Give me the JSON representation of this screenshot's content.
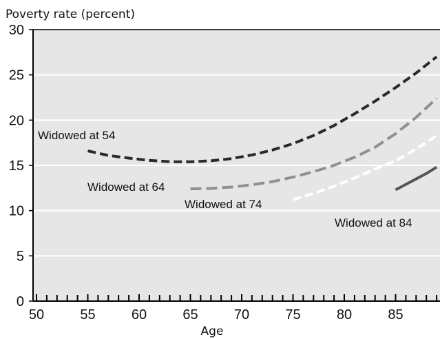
{
  "chart_data": {
    "type": "line",
    "ylabel": "Poverty rate (percent)",
    "xlabel": "Age",
    "xlim": [
      50,
      89
    ],
    "ylim": [
      0,
      30
    ],
    "xticks": [
      50,
      55,
      60,
      65,
      70,
      75,
      80,
      85
    ],
    "yticks": [
      0,
      5,
      10,
      15,
      20,
      25,
      30
    ],
    "grid": true,
    "legend": "inline labels",
    "colors": {
      "plot_bg": "#e6e6e6",
      "grid": "#ffffff",
      "axis": "#000000"
    },
    "series": [
      {
        "name": "Widowed at 54",
        "color": "#2a2a2a",
        "dash": "dashed",
        "x": [
          55,
          57,
          59,
          61,
          63,
          65,
          67,
          69,
          71,
          73,
          75,
          77,
          79,
          81,
          83,
          85,
          87,
          89
        ],
        "y": [
          16.6,
          16.1,
          15.8,
          15.55,
          15.4,
          15.4,
          15.5,
          15.75,
          16.15,
          16.7,
          17.4,
          18.3,
          19.4,
          20.7,
          22.1,
          23.6,
          25.2,
          27.0
        ]
      },
      {
        "name": "Widowed at 64",
        "color": "#909090",
        "dash": "long-dashed",
        "x": [
          65,
          67,
          69,
          71,
          73,
          75,
          77,
          79,
          81,
          83,
          85,
          87,
          89
        ],
        "y": [
          12.4,
          12.45,
          12.6,
          12.85,
          13.2,
          13.7,
          14.3,
          15.0,
          15.9,
          17.0,
          18.5,
          20.3,
          22.4
        ]
      },
      {
        "name": "Widowed at 74",
        "color": "#ffffff",
        "dash": "dashed",
        "x": [
          75,
          77,
          79,
          81,
          83,
          85,
          87,
          89
        ],
        "y": [
          11.2,
          11.9,
          12.7,
          13.6,
          14.6,
          15.5,
          16.8,
          18.3
        ]
      },
      {
        "name": "Widowed at 84",
        "color": "#555555",
        "dash": "solid",
        "x": [
          85,
          86,
          87,
          88,
          89
        ],
        "y": [
          12.3,
          12.9,
          13.5,
          14.1,
          14.8
        ]
      }
    ]
  }
}
